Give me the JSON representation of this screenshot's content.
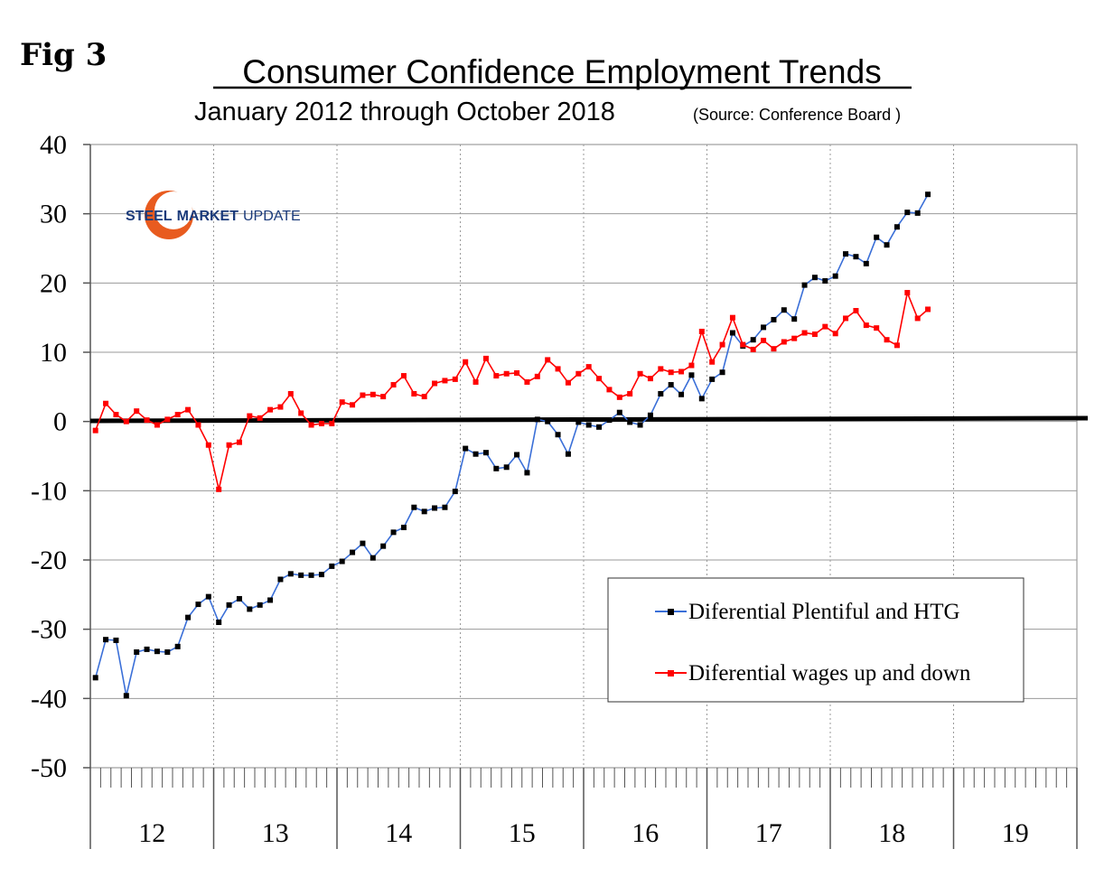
{
  "figure_label": "Fig 3",
  "logo": {
    "word1": "STEEL",
    "word2": "MARKET",
    "word3": "UPDATE"
  },
  "chart_data": {
    "type": "line",
    "title": "Consumer Confidence Employment Trends",
    "subtitle": "January 2012 through October 2018",
    "source": "(Source: Conference Board )",
    "xlabel": "",
    "ylabel": "",
    "ylim": [
      -50,
      40
    ],
    "yticks": [
      40,
      30,
      20,
      10,
      0,
      -10,
      -20,
      -30,
      -40,
      -50
    ],
    "ytick_labels": [
      "40",
      "30",
      "20",
      "10",
      "0",
      "-10",
      "-20",
      "-30",
      "-40",
      "-50"
    ],
    "year_labels": [
      "12",
      "13",
      "14",
      "15",
      "16",
      "17",
      "18",
      "19"
    ],
    "months_per_year": 12,
    "series": [
      {
        "name": "Diferential Plentiful and HTG",
        "line_color": "#3a6fd8",
        "marker_color": "#000000",
        "start": "2012-01",
        "values": [
          -37.0,
          -31.5,
          -31.6,
          -39.6,
          -33.3,
          -32.9,
          -33.2,
          -33.3,
          -32.5,
          -28.3,
          -26.4,
          -25.3,
          -29.0,
          -26.5,
          -25.6,
          -27.1,
          -26.5,
          -25.8,
          -22.8,
          -22.0,
          -22.2,
          -22.2,
          -22.1,
          -20.9,
          -20.2,
          -18.9,
          -17.6,
          -19.7,
          -18.0,
          -16.0,
          -15.3,
          -12.4,
          -13.0,
          -12.5,
          -12.4,
          -10.1,
          -3.9,
          -4.7,
          -4.5,
          -6.8,
          -6.6,
          -4.8,
          -7.4,
          0.3,
          0.0,
          -1.9,
          -4.7,
          -0.1,
          -0.5,
          -0.8,
          0.2,
          1.3,
          -0.1,
          -0.5,
          0.9,
          4.0,
          5.3,
          3.9,
          6.7,
          3.3,
          6.1,
          7.1,
          12.8,
          10.9,
          11.8,
          13.6,
          14.7,
          16.1,
          14.8,
          19.7,
          20.8,
          20.3,
          21.0,
          24.2,
          23.8,
          22.8,
          26.6,
          25.5,
          28.1,
          30.2,
          30.1,
          32.8
        ]
      },
      {
        "name": "Diferential wages up and down",
        "line_color": "#ff0000",
        "marker_color": "#ff0000",
        "start": "2012-01",
        "values": [
          -1.3,
          2.6,
          1.0,
          0.0,
          1.5,
          0.2,
          -0.5,
          0.3,
          1.0,
          1.7,
          -0.5,
          -3.4,
          -9.8,
          -3.4,
          -3.0,
          0.8,
          0.5,
          1.7,
          2.1,
          4.0,
          1.2,
          -0.5,
          -0.3,
          -0.3,
          2.8,
          2.4,
          3.8,
          3.9,
          3.6,
          5.3,
          6.6,
          4.0,
          3.6,
          5.5,
          5.9,
          6.1,
          8.6,
          5.7,
          9.1,
          6.6,
          6.9,
          7.0,
          5.7,
          6.5,
          8.9,
          7.6,
          5.6,
          6.9,
          7.9,
          6.2,
          4.6,
          3.5,
          4.0,
          6.9,
          6.2,
          7.6,
          7.1,
          7.2,
          8.1,
          13.0,
          8.6,
          11.1,
          15.0,
          11.1,
          10.4,
          11.7,
          10.5,
          11.5,
          12.0,
          12.8,
          12.6,
          13.7,
          12.7,
          14.9,
          16.0,
          13.9,
          13.5,
          11.8,
          11.0,
          18.6,
          14.9,
          16.2
        ]
      }
    ],
    "legend_position": "lower-right"
  }
}
